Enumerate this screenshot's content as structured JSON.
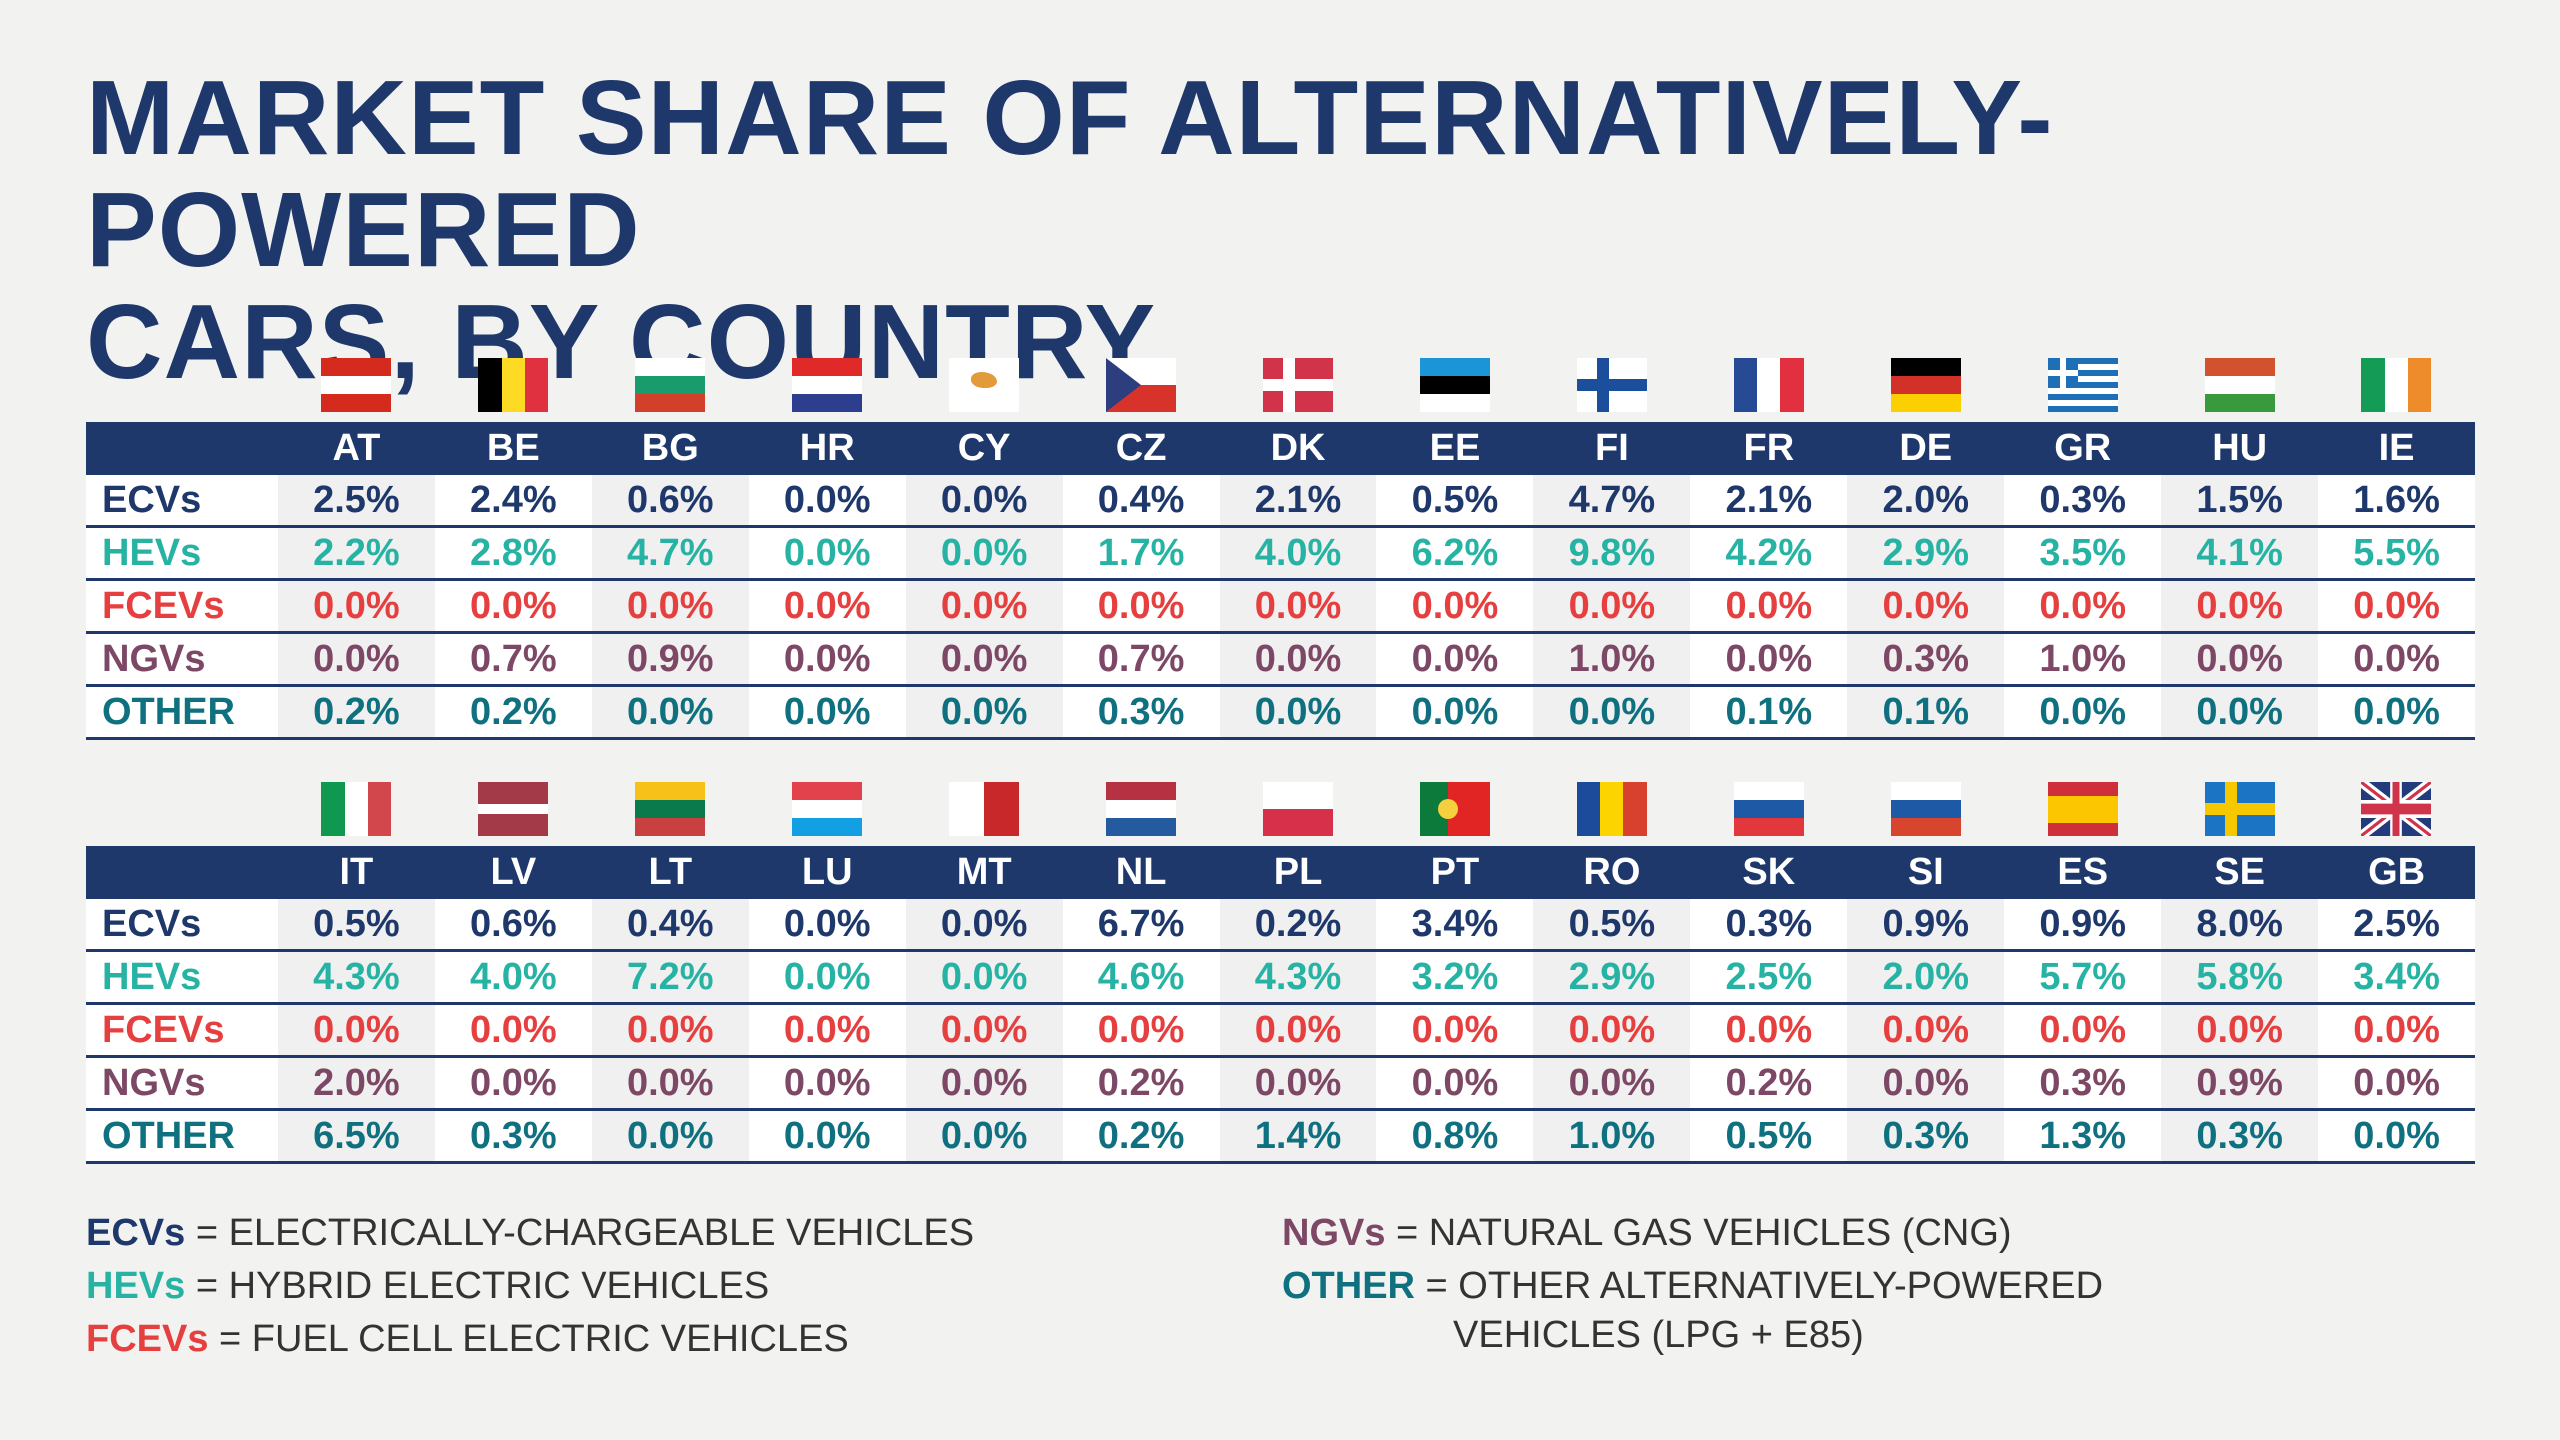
{
  "title": {
    "line1": "MARKET SHARE OF ALTERNATIVELY-POWERED",
    "line2": "CARS, BY COUNTRY"
  },
  "colors": {
    "navy": "#1f386b",
    "ECVs": "#1f386b",
    "HEVs": "#26b3a3",
    "FCEVs": "#e5403f",
    "NGVs": "#7d4866",
    "OTHER": "#0f7080"
  },
  "row_labels": [
    "ECVs",
    "HEVs",
    "FCEVs",
    "NGVs",
    "OTHER"
  ],
  "tables": [
    {
      "countries": [
        "AT",
        "BE",
        "BG",
        "HR",
        "CY",
        "CZ",
        "DK",
        "EE",
        "FI",
        "FR",
        "DE",
        "GR",
        "HU",
        "IE"
      ],
      "flags": [
        {
          "d": "h",
          "c": [
            "#d52b1e",
            "#ffffff",
            "#d52b1e"
          ]
        },
        {
          "d": "v",
          "c": [
            "#000000",
            "#fdda24",
            "#e03140"
          ]
        },
        {
          "d": "h",
          "c": [
            "#ffffff",
            "#1a9b6c",
            "#d2402c"
          ]
        },
        {
          "d": "h",
          "c": [
            "#e02a2a",
            "#ffffff",
            "#2d3e8f"
          ]
        },
        {
          "d": "h",
          "c": [
            "#ffffff"
          ],
          "mark": "#e39a3b"
        },
        {
          "d": "cz",
          "c": [
            "#ffffff",
            "#d7332b",
            "#2d3e7e"
          ]
        },
        {
          "d": "cross",
          "c": [
            "#d1344a",
            "#ffffff"
          ]
        },
        {
          "d": "h",
          "c": [
            "#1b95d6",
            "#000000",
            "#ffffff"
          ]
        },
        {
          "d": "cross",
          "c": [
            "#ffffff",
            "#1b4f9c"
          ]
        },
        {
          "d": "v",
          "c": [
            "#264a94",
            "#ffffff",
            "#e23040"
          ]
        },
        {
          "d": "h",
          "c": [
            "#000000",
            "#d2312a",
            "#fccf00"
          ]
        },
        {
          "d": "gr",
          "c": [
            "#1d70b8",
            "#ffffff"
          ]
        },
        {
          "d": "h",
          "c": [
            "#d2512f",
            "#ffffff",
            "#389a3c"
          ]
        },
        {
          "d": "v",
          "c": [
            "#149b56",
            "#ffffff",
            "#ee8b2a"
          ]
        }
      ],
      "rows": [
        [
          "2.5%",
          "2.4%",
          "0.6%",
          "0.0%",
          "0.0%",
          "0.4%",
          "2.1%",
          "0.5%",
          "4.7%",
          "2.1%",
          "2.0%",
          "0.3%",
          "1.5%",
          "1.6%"
        ],
        [
          "2.2%",
          "2.8%",
          "4.7%",
          "0.0%",
          "0.0%",
          "1.7%",
          "4.0%",
          "6.2%",
          "9.8%",
          "4.2%",
          "2.9%",
          "3.5%",
          "4.1%",
          "5.5%"
        ],
        [
          "0.0%",
          "0.0%",
          "0.0%",
          "0.0%",
          "0.0%",
          "0.0%",
          "0.0%",
          "0.0%",
          "0.0%",
          "0.0%",
          "0.0%",
          "0.0%",
          "0.0%",
          "0.0%"
        ],
        [
          "0.0%",
          "0.7%",
          "0.9%",
          "0.0%",
          "0.0%",
          "0.7%",
          "0.0%",
          "0.0%",
          "1.0%",
          "0.0%",
          "0.3%",
          "1.0%",
          "0.0%",
          "0.0%"
        ],
        [
          "0.2%",
          "0.2%",
          "0.0%",
          "0.0%",
          "0.0%",
          "0.3%",
          "0.0%",
          "0.0%",
          "0.0%",
          "0.1%",
          "0.1%",
          "0.0%",
          "0.0%",
          "0.0%"
        ]
      ]
    },
    {
      "countries": [
        "IT",
        "LV",
        "LT",
        "LU",
        "MT",
        "NL",
        "PL",
        "PT",
        "RO",
        "SK",
        "SI",
        "ES",
        "SE",
        "GB"
      ],
      "flags": [
        {
          "d": "v",
          "c": [
            "#0f9850",
            "#ffffff",
            "#d1474c"
          ]
        },
        {
          "d": "lv",
          "c": [
            "#a23a47",
            "#ffffff",
            "#a23a47"
          ]
        },
        {
          "d": "h",
          "c": [
            "#f8c11a",
            "#0a7a4d",
            "#c8403f"
          ]
        },
        {
          "d": "h",
          "c": [
            "#e2424c",
            "#ffffff",
            "#13a0e2"
          ]
        },
        {
          "d": "v",
          "c": [
            "#ffffff",
            "#c9282a"
          ]
        },
        {
          "d": "h",
          "c": [
            "#b63142",
            "#ffffff",
            "#245a9e"
          ]
        },
        {
          "d": "h",
          "c": [
            "#ffffff",
            "#d6304a"
          ]
        },
        {
          "d": "pt",
          "c": [
            "#0c7a3a",
            "#e12424"
          ]
        },
        {
          "d": "v",
          "c": [
            "#1c4b9b",
            "#fcd500",
            "#d8412d"
          ]
        },
        {
          "d": "h",
          "c": [
            "#ffffff",
            "#1e59a6",
            "#e2373d"
          ]
        },
        {
          "d": "h",
          "c": [
            "#ffffff",
            "#1e59a6",
            "#d8452e"
          ]
        },
        {
          "d": "es",
          "c": [
            "#cf2f3a",
            "#fcc600",
            "#cf2f3a"
          ]
        },
        {
          "d": "cross",
          "c": [
            "#1b74c4",
            "#f7c700"
          ]
        },
        {
          "d": "gb",
          "c": [
            "#233b7d",
            "#ffffff",
            "#d0344a"
          ]
        }
      ],
      "rows": [
        [
          "0.5%",
          "0.6%",
          "0.4%",
          "0.0%",
          "0.0%",
          "6.7%",
          "0.2%",
          "3.4%",
          "0.5%",
          "0.3%",
          "0.9%",
          "0.9%",
          "8.0%",
          "2.5%"
        ],
        [
          "4.3%",
          "4.0%",
          "7.2%",
          "0.0%",
          "0.0%",
          "4.6%",
          "4.3%",
          "3.2%",
          "2.9%",
          "2.5%",
          "2.0%",
          "5.7%",
          "5.8%",
          "3.4%"
        ],
        [
          "0.0%",
          "0.0%",
          "0.0%",
          "0.0%",
          "0.0%",
          "0.0%",
          "0.0%",
          "0.0%",
          "0.0%",
          "0.0%",
          "0.0%",
          "0.0%",
          "0.0%",
          "0.0%"
        ],
        [
          "2.0%",
          "0.0%",
          "0.0%",
          "0.0%",
          "0.0%",
          "0.2%",
          "0.0%",
          "0.0%",
          "0.0%",
          "0.2%",
          "0.0%",
          "0.3%",
          "0.9%",
          "0.0%"
        ],
        [
          "6.5%",
          "0.3%",
          "0.0%",
          "0.0%",
          "0.0%",
          "0.2%",
          "1.4%",
          "0.8%",
          "1.0%",
          "0.5%",
          "0.3%",
          "1.3%",
          "0.3%",
          "0.0%"
        ]
      ]
    }
  ],
  "legend": {
    "ecv": {
      "abbr": "ECVs",
      "text": " = ELECTRICALLY-CHARGEABLE VEHICLES"
    },
    "hev": {
      "abbr": "HEVs",
      "text": " = HYBRID ELECTRIC VEHICLES"
    },
    "fcev": {
      "abbr": "FCEVs",
      "text": " = FUEL CELL ELECTRIC VEHICLES"
    },
    "ngv": {
      "abbr": "NGVs",
      "text": " = NATURAL GAS VEHICLES (CNG)"
    },
    "other": {
      "abbr": "OTHER",
      "text": " = OTHER ALTERNATIVELY-POWERED",
      "text2": "VEHICLES (LPG + E85)"
    }
  }
}
